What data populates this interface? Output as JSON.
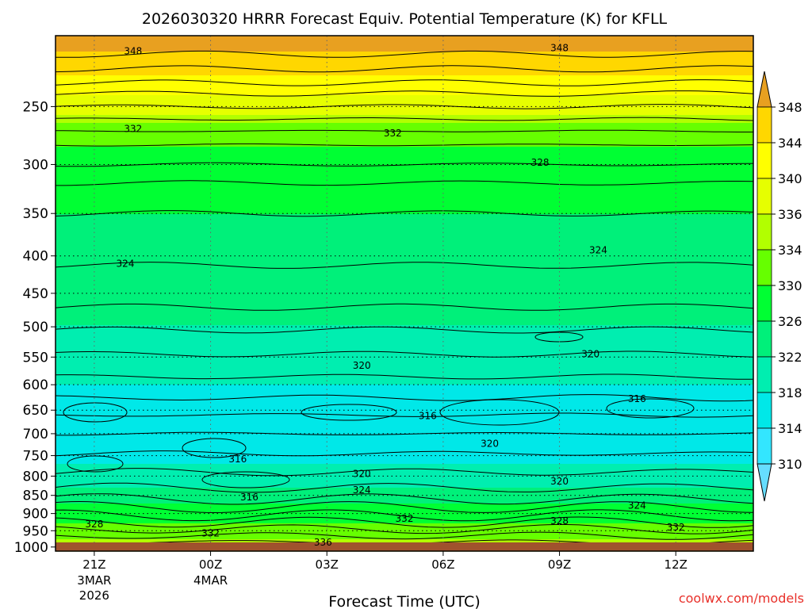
{
  "chart_data": {
    "type": "heatmap",
    "title": "2026030320 HRRR Forecast Equiv. Potential Temperature (K) for KFLL",
    "xlabel": "Forecast Time (UTC)",
    "ylabel": "",
    "credit": "coolwx.com/models",
    "x_ticks": [
      {
        "hour": 0,
        "label": "21Z",
        "sub": [
          "3MAR",
          "2026"
        ]
      },
      {
        "hour": 3,
        "label": "00Z",
        "sub": [
          "4MAR"
        ]
      },
      {
        "hour": 6,
        "label": "03Z",
        "sub": []
      },
      {
        "hour": 9,
        "label": "06Z",
        "sub": []
      },
      {
        "hour": 12,
        "label": "09Z",
        "sub": []
      },
      {
        "hour": 15,
        "label": "12Z",
        "sub": []
      }
    ],
    "xlim": [
      -1,
      17
    ],
    "y_ticks": [
      250,
      300,
      350,
      400,
      450,
      500,
      550,
      600,
      650,
      700,
      750,
      800,
      850,
      900,
      950,
      1000
    ],
    "ylim_hpa": [
      200,
      1013
    ],
    "colorbar": {
      "labels": [
        348,
        344,
        340,
        336,
        334,
        330,
        326,
        322,
        318,
        314,
        310
      ],
      "colors": [
        "#e8a020",
        "#ffd700",
        "#ffff00",
        "#e6ff00",
        "#b2ff00",
        "#66ff00",
        "#00ff33",
        "#00f07a",
        "#00eeb0",
        "#00e8e8",
        "#33e6ff",
        "#66ddff"
      ]
    },
    "profile_K_at_hpa": [
      {
        "p": 210,
        "theta_e": 348
      },
      {
        "p": 250,
        "theta_e": 338
      },
      {
        "p": 270,
        "theta_e": 332
      },
      {
        "p": 300,
        "theta_e": 328
      },
      {
        "p": 350,
        "theta_e": 326
      },
      {
        "p": 410,
        "theta_e": 324
      },
      {
        "p": 500,
        "theta_e": 322
      },
      {
        "p": 560,
        "theta_e": 320
      },
      {
        "p": 640,
        "theta_e": 316
      },
      {
        "p": 700,
        "theta_e": 314
      },
      {
        "p": 800,
        "theta_e": 320
      },
      {
        "p": 850,
        "theta_e": 324
      },
      {
        "p": 900,
        "theta_e": 328
      },
      {
        "p": 950,
        "theta_e": 332
      },
      {
        "p": 1000,
        "theta_e": 336
      }
    ],
    "contour_labels": [
      {
        "value": "348",
        "hour": 1.0,
        "p": 210
      },
      {
        "value": "348",
        "hour": 12.0,
        "p": 208
      },
      {
        "value": "332",
        "hour": 1.0,
        "p": 268
      },
      {
        "value": "332",
        "hour": 7.7,
        "p": 272
      },
      {
        "value": "328",
        "hour": 11.5,
        "p": 298
      },
      {
        "value": "324",
        "hour": 0.8,
        "p": 410
      },
      {
        "value": "324",
        "hour": 13.0,
        "p": 393
      },
      {
        "value": "320",
        "hour": 12.8,
        "p": 545
      },
      {
        "value": "320",
        "hour": 6.9,
        "p": 565
      },
      {
        "value": "316",
        "hour": 8.6,
        "p": 662
      },
      {
        "value": "316",
        "hour": 14.0,
        "p": 627
      },
      {
        "value": "320",
        "hour": 10.2,
        "p": 722
      },
      {
        "value": "316",
        "hour": 3.7,
        "p": 758
      },
      {
        "value": "320",
        "hour": 6.9,
        "p": 794
      },
      {
        "value": "324",
        "hour": 6.9,
        "p": 836
      },
      {
        "value": "320",
        "hour": 12.0,
        "p": 813
      },
      {
        "value": "316",
        "hour": 4.0,
        "p": 855
      },
      {
        "value": "324",
        "hour": 14.0,
        "p": 878
      },
      {
        "value": "332",
        "hour": 8.0,
        "p": 915
      },
      {
        "value": "328",
        "hour": 12.0,
        "p": 921
      },
      {
        "value": "328",
        "hour": 0.0,
        "p": 931
      },
      {
        "value": "332",
        "hour": 15.0,
        "p": 940
      },
      {
        "value": "332",
        "hour": 3.0,
        "p": 958
      },
      {
        "value": "336",
        "hour": 5.9,
        "p": 986
      }
    ]
  }
}
